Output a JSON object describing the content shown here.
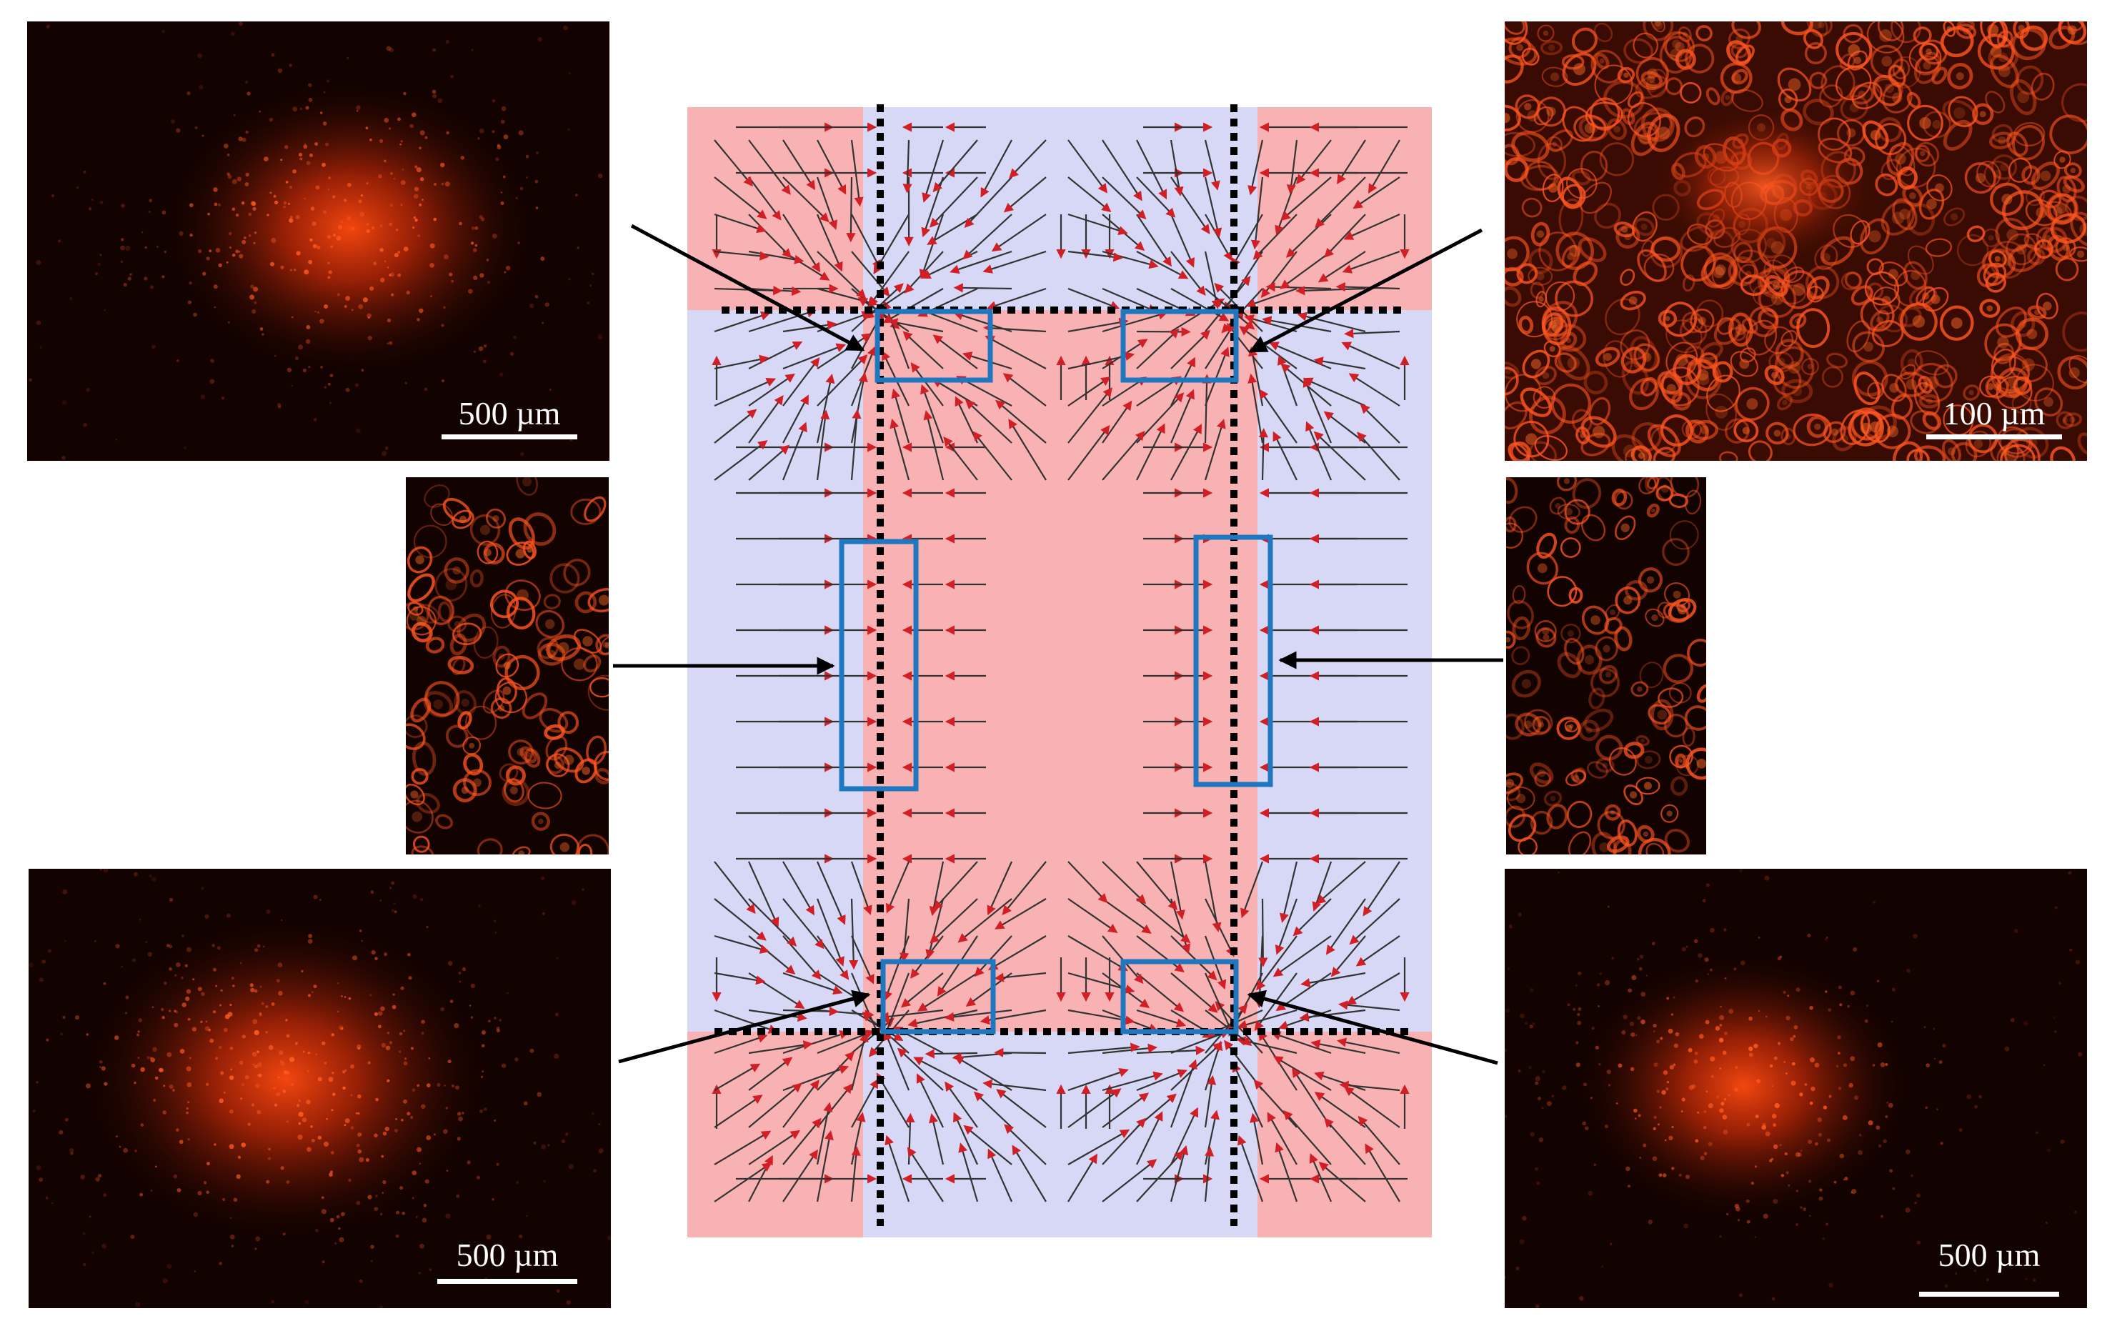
{
  "figure": {
    "panels": [
      {
        "id": "top-left",
        "scale_label": "500 µm",
        "stain_color": "#ff3a12",
        "texture": "dense-cluster"
      },
      {
        "id": "top-right",
        "scale_label": "100 µm",
        "stain_color": "#ff4a18",
        "texture": "cells"
      },
      {
        "id": "mid-left",
        "scale_label": "",
        "stain_color": "#ff4a18",
        "texture": "cells-sparse"
      },
      {
        "id": "mid-right",
        "scale_label": "",
        "stain_color": "#ff4a18",
        "texture": "cells-sparse"
      },
      {
        "id": "bottom-left",
        "scale_label": "500 µm",
        "stain_color": "#ff3a12",
        "texture": "dense-cluster"
      },
      {
        "id": "bottom-right",
        "scale_label": "500 µm",
        "stain_color": "#ff3a12",
        "texture": "dense-cluster"
      }
    ],
    "diagram": {
      "colors": {
        "pink_region": "#f9b2b4",
        "blue_region": "#d6d8f6",
        "vector": "#d21f26",
        "vector_stem": "#333333",
        "dotted_line": "#000000",
        "roi_box": "#1f77c0",
        "pointer_arrow": "#000000"
      },
      "layout": "central pink rectangle bounded by dotted lines; blue side bands; pink corner zones; red force vectors pointing toward dotted boundaries",
      "roi_boxes": [
        "top-left-corner",
        "top-right-corner",
        "left-edge",
        "right-edge",
        "bottom-left-corner",
        "bottom-right-corner"
      ]
    }
  }
}
